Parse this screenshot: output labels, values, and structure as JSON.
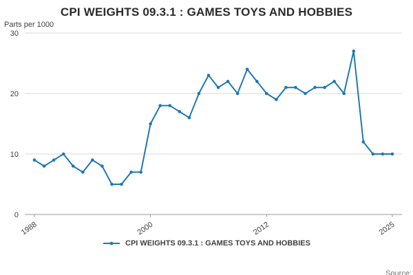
{
  "title": "CPI WEIGHTS 09.3.1 : GAMES TOYS AND HOBBIES",
  "y_axis_unit": "Parts per 1000",
  "source_label": "Source:",
  "legend": {
    "series_label": "CPI WEIGHTS 09.3.1 : GAMES TOYS AND HOBBIES"
  },
  "colors": {
    "line": "#1f77b4",
    "gridline": "#d9d9d9",
    "axis": "#9a9a9a",
    "tick_text": "#414042",
    "title_text": "#2b2b2b",
    "source_text": "#707071"
  },
  "chart_data": {
    "type": "line",
    "title": "CPI WEIGHTS 09.3.1 : GAMES TOYS AND HOBBIES",
    "xlabel": "",
    "ylabel": "Parts per 1000",
    "ylim": [
      0,
      30
    ],
    "yticks": [
      0,
      10,
      20,
      30
    ],
    "xlim": [
      1987,
      2026
    ],
    "xticks": [
      1988,
      2000,
      2012,
      2025
    ],
    "grid": "horizontal",
    "legend_position": "bottom",
    "x": [
      1988,
      1989,
      1990,
      1991,
      1992,
      1993,
      1994,
      1995,
      1996,
      1997,
      1998,
      1999,
      2000,
      2001,
      2002,
      2003,
      2004,
      2005,
      2006,
      2007,
      2008,
      2009,
      2010,
      2011,
      2012,
      2013,
      2014,
      2015,
      2016,
      2017,
      2018,
      2019,
      2020,
      2021,
      2022,
      2023,
      2024,
      2025
    ],
    "series": [
      {
        "name": "CPI WEIGHTS 09.3.1 : GAMES TOYS AND HOBBIES",
        "color": "#1f77b4",
        "values": [
          9,
          8,
          9,
          10,
          8,
          7,
          9,
          8,
          5,
          5,
          7,
          7,
          15,
          18,
          18,
          17,
          16,
          20,
          23,
          21,
          22,
          20,
          24,
          22,
          20,
          19,
          21,
          21,
          20,
          21,
          21,
          22,
          20,
          27,
          12,
          10,
          10,
          10
        ]
      }
    ]
  }
}
